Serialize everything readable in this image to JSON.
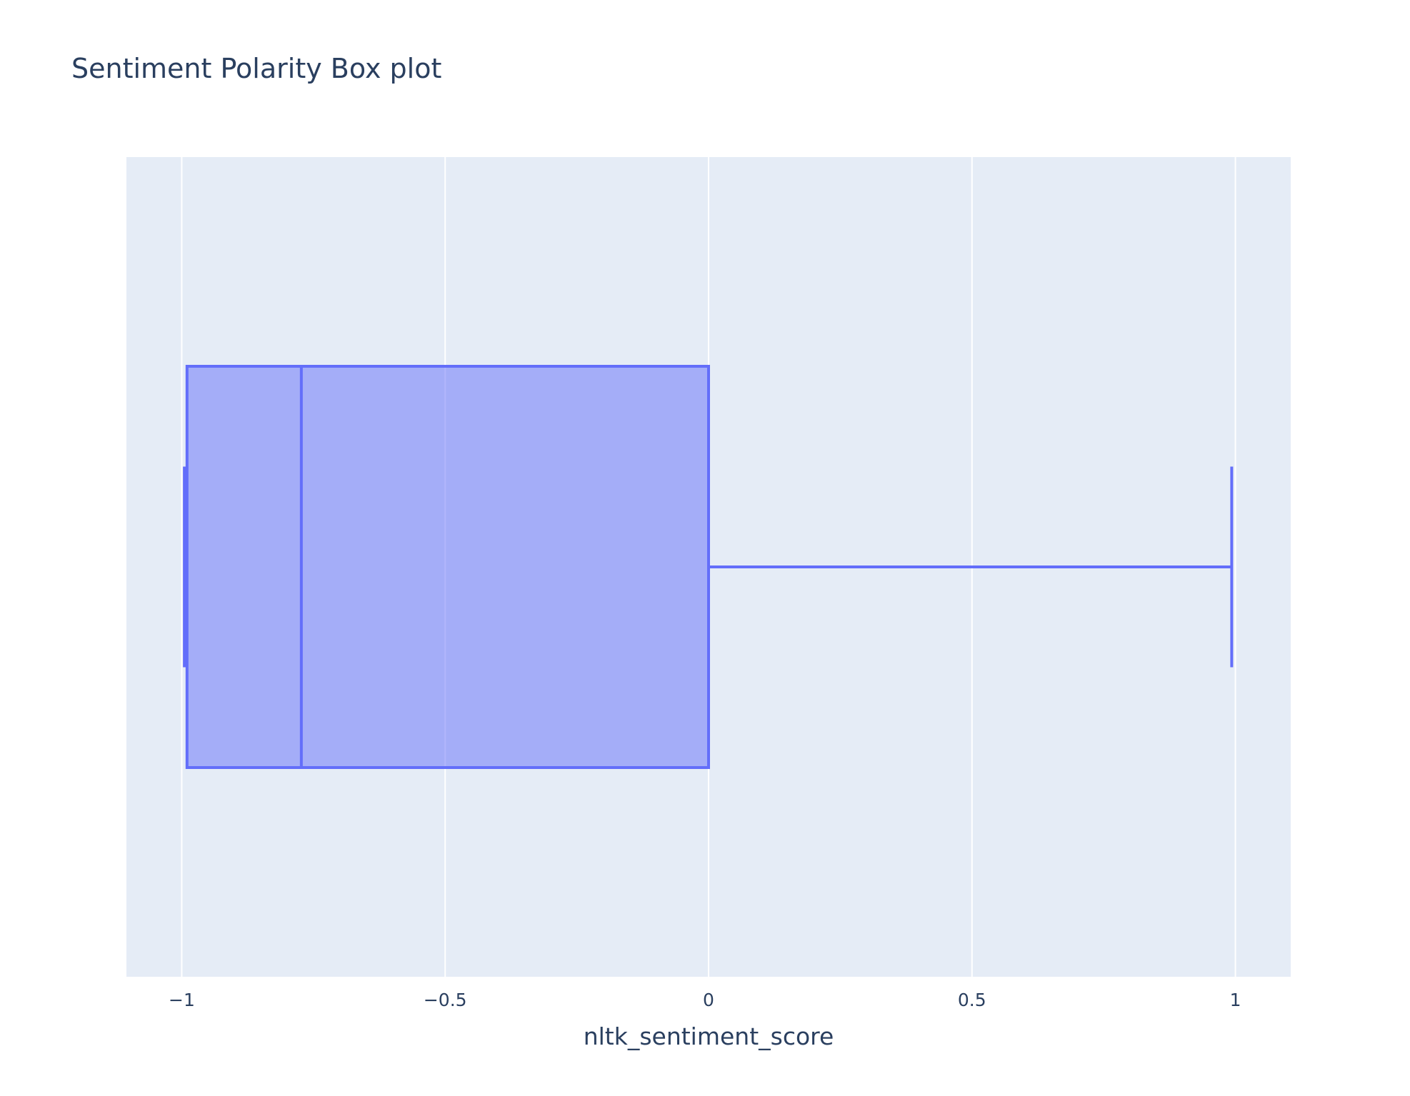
{
  "chart_data": {
    "type": "box",
    "title": "Sentiment Polarity Box plot",
    "xlabel": "nltk_sentiment_score",
    "ylabel": "",
    "orientation": "horizontal",
    "xlim": [
      -1.105,
      1.105
    ],
    "xticks": [
      -1,
      -0.5,
      0,
      0.5,
      1
    ],
    "xtick_labels": [
      "−1",
      "−0.5",
      "0",
      "0.5",
      "1"
    ],
    "grid": true,
    "box": {
      "min": -0.995,
      "q1": -0.99,
      "median": -0.773,
      "q3": 0.0,
      "max": 0.993
    },
    "colors": {
      "plot_bg": "#e5ecf6",
      "grid": "#ffffff",
      "box_line": "#636efa",
      "box_fill": "rgba(99,110,250,0.5)",
      "text": "#2a3f5f"
    }
  }
}
